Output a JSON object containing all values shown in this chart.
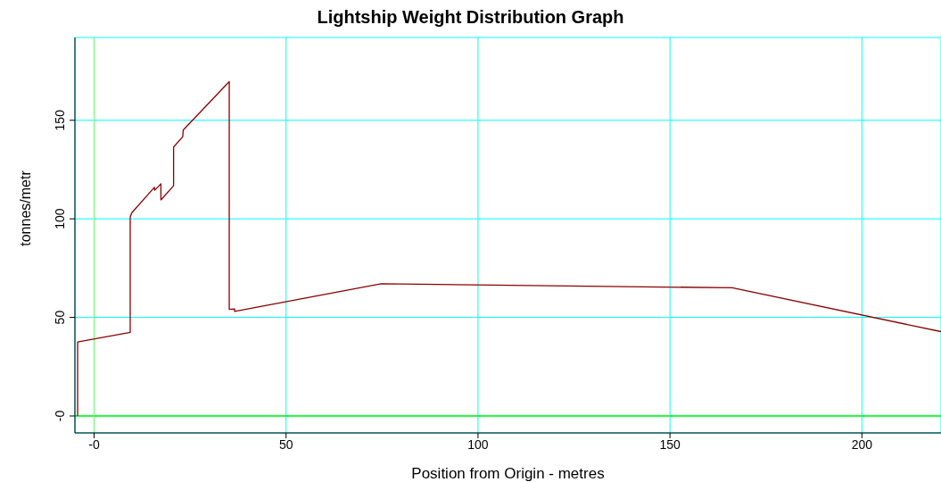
{
  "chart_data": {
    "type": "line",
    "title": "Lightship Weight Distribution Graph",
    "xlabel": "Position from Origin - metres",
    "ylabel": "tonnes/metr",
    "series": [
      {
        "color": "#8b0000",
        "x": [
          -4.3,
          -4.3,
          9.4,
          9.4,
          9.8,
          15.7,
          15.8,
          17.4,
          17.4,
          20.7,
          20.7,
          23.1,
          23.2,
          35.2,
          35.2,
          36.6,
          36.6,
          74.8,
          166.2,
          220.6
        ],
        "values": [
          0,
          37.5,
          42.4,
          101,
          103,
          116,
          114.5,
          117.8,
          109.6,
          116.8,
          136.4,
          141.7,
          145,
          169.6,
          54.1,
          54.3,
          53,
          67.1,
          65,
          42.8
        ]
      }
    ],
    "xlim": [
      -5,
      220.6
    ],
    "ylim": [
      -8.6,
      192
    ],
    "xticks": [
      {
        "value": 0,
        "label": "-0"
      },
      50,
      100,
      150,
      200
    ],
    "yticks": [
      {
        "value": 0,
        "label": "-0"
      },
      50,
      100,
      150
    ],
    "grid": true,
    "legend": false,
    "marker": "none",
    "line_style": "solid",
    "ref_lines": [
      {
        "axis": "y",
        "value": 0,
        "color": "#00ff00"
      },
      {
        "axis": "x",
        "value": 0,
        "color": "#66ff66"
      }
    ]
  }
}
